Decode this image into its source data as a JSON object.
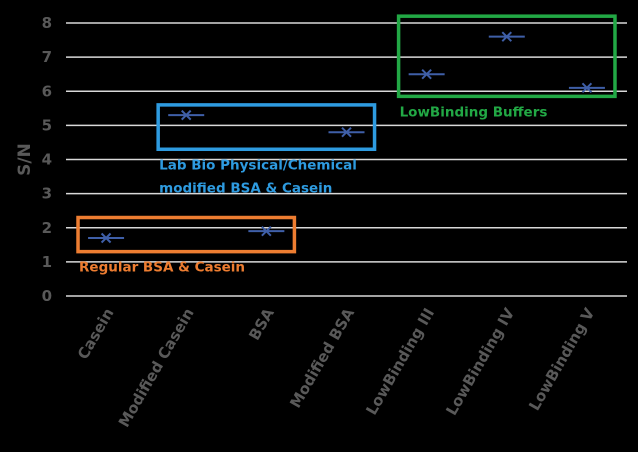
{
  "chart_data": {
    "type": "scatter",
    "title": "",
    "xlabel": "",
    "ylabel": "S/N",
    "categories": [
      "Casein",
      "Modified Casein",
      "BSA",
      "Modified BSA",
      "LowBinding III",
      "LowBinding IV",
      "LowBinding V"
    ],
    "values": [
      1.7,
      5.3,
      1.9,
      4.8,
      6.5,
      7.6,
      6.1
    ],
    "ylim": [
      0,
      8
    ],
    "yticks": [
      0,
      1,
      2,
      3,
      4,
      5,
      6,
      7,
      8
    ],
    "grid": true,
    "marker": "x-with-horizontal-bar",
    "marker_color": "#3F5FA8",
    "annotations": [
      {
        "text": "Regular BSA & Casein",
        "color": "#ED7D31",
        "groups": [
          "Casein",
          "BSA"
        ],
        "yrange": [
          1.3,
          2.3
        ]
      },
      {
        "text": "Lab Bio Physical/Chemical",
        "text2": "modified BSA & Casein",
        "color": "#2E9BE0",
        "groups": [
          "Modified Casein",
          "Modified BSA"
        ],
        "yrange": [
          4.3,
          5.6
        ]
      },
      {
        "text": "LowBinding Buffers",
        "color": "#22A845",
        "groups": [
          "LowBinding III",
          "LowBinding V"
        ],
        "yrange": [
          5.85,
          8.2
        ]
      }
    ]
  }
}
